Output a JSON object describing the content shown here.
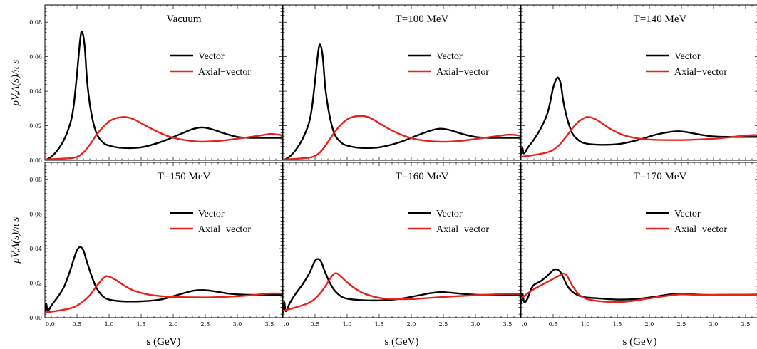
{
  "colors": {
    "vector": "#000000",
    "axial": "#e8211b",
    "frame": "#000000"
  },
  "chart_data": [
    {
      "type": "line",
      "title": "Vacuum",
      "xlabel": "s (GeV)",
      "ylabel": "ρV,A(s)/π s",
      "xlim": [
        0,
        3.7
      ],
      "ylim": [
        0,
        0.09
      ],
      "xticks": [
        "0.0",
        "0.5",
        "1.0",
        "1.5",
        "2.0",
        "2.5",
        "3.0",
        "3.5"
      ],
      "yticks": [
        "0.00",
        "0.02",
        "0.04",
        "0.06",
        "0.08"
      ],
      "legend_position": "right",
      "series": [
        {
          "name": "Vector",
          "x": [
            0,
            0.1,
            0.2,
            0.3,
            0.4,
            0.45,
            0.5,
            0.55,
            0.58,
            0.62,
            0.66,
            0.72,
            0.8,
            0.9,
            1.0,
            1.2,
            1.5,
            1.8,
            2.1,
            2.3,
            2.45,
            2.6,
            2.8,
            3.0,
            3.2,
            3.5,
            3.7
          ],
          "y": [
            0.0,
            0.002,
            0.006,
            0.012,
            0.022,
            0.032,
            0.05,
            0.07,
            0.0745,
            0.066,
            0.045,
            0.028,
            0.016,
            0.0105,
            0.0085,
            0.0072,
            0.0075,
            0.0105,
            0.015,
            0.018,
            0.019,
            0.018,
            0.0155,
            0.0135,
            0.013,
            0.013,
            0.013
          ]
        },
        {
          "name": "Axial−vector",
          "x": [
            0,
            0.2,
            0.4,
            0.5,
            0.6,
            0.7,
            0.8,
            0.9,
            1.0,
            1.1,
            1.2,
            1.3,
            1.4,
            1.5,
            1.7,
            1.9,
            2.1,
            2.4,
            2.7,
            3.0,
            3.3,
            3.5,
            3.6,
            3.7
          ],
          "y": [
            0.0005,
            0.0008,
            0.0012,
            0.002,
            0.0045,
            0.009,
            0.0145,
            0.019,
            0.0225,
            0.0243,
            0.025,
            0.0248,
            0.0235,
            0.0215,
            0.0175,
            0.0142,
            0.0122,
            0.0108,
            0.0112,
            0.0125,
            0.014,
            0.0152,
            0.015,
            0.0145
          ]
        }
      ]
    },
    {
      "type": "line",
      "title": "T=100 MeV",
      "xlabel": "",
      "ylabel": "",
      "xlim": [
        0,
        3.7
      ],
      "ylim": [
        0,
        0.09
      ],
      "xticks": [
        ".0",
        "0.5",
        "1.0",
        "1.5",
        "2.0",
        "2.5",
        "3.0",
        "3.5"
      ],
      "yticks": [],
      "legend_position": "right",
      "series": [
        {
          "name": "Vector",
          "x": [
            0,
            0.1,
            0.2,
            0.3,
            0.4,
            0.45,
            0.5,
            0.55,
            0.58,
            0.62,
            0.66,
            0.72,
            0.8,
            0.9,
            1.0,
            1.2,
            1.5,
            1.8,
            2.1,
            2.3,
            2.45,
            2.6,
            2.8,
            3.0,
            3.2,
            3.5,
            3.7
          ],
          "y": [
            0.0,
            0.002,
            0.006,
            0.012,
            0.021,
            0.03,
            0.046,
            0.063,
            0.067,
            0.06,
            0.042,
            0.027,
            0.0155,
            0.0105,
            0.0085,
            0.0072,
            0.0075,
            0.0102,
            0.0145,
            0.0172,
            0.0183,
            0.0175,
            0.0152,
            0.0135,
            0.013,
            0.013,
            0.013
          ]
        },
        {
          "name": "Axial−vector",
          "x": [
            0,
            0.2,
            0.4,
            0.5,
            0.6,
            0.7,
            0.8,
            0.9,
            1.0,
            1.1,
            1.2,
            1.3,
            1.4,
            1.5,
            1.7,
            1.9,
            2.1,
            2.4,
            2.7,
            3.0,
            3.3,
            3.5,
            3.6,
            3.7
          ],
          "y": [
            0.0005,
            0.0008,
            0.0015,
            0.0025,
            0.0055,
            0.0105,
            0.016,
            0.0205,
            0.0237,
            0.0252,
            0.0257,
            0.0253,
            0.0238,
            0.0215,
            0.0172,
            0.014,
            0.012,
            0.0108,
            0.011,
            0.0123,
            0.0138,
            0.0148,
            0.0147,
            0.0143
          ]
        }
      ]
    },
    {
      "type": "line",
      "title": "T=140 MeV",
      "xlabel": "",
      "ylabel": "",
      "xlim": [
        0,
        3.7
      ],
      "ylim": [
        0,
        0.09
      ],
      "xticks": [
        "0",
        "0.5",
        "1.0",
        "1.5",
        "2.0",
        "2.5",
        "3.0",
        "3.5"
      ],
      "yticks": [],
      "legend_position": "right",
      "series": [
        {
          "name": "Vector",
          "x": [
            0,
            0.02,
            0.04,
            0.07,
            0.1,
            0.2,
            0.3,
            0.4,
            0.45,
            0.5,
            0.55,
            0.58,
            0.62,
            0.66,
            0.72,
            0.8,
            0.9,
            1.0,
            1.2,
            1.5,
            1.8,
            2.1,
            2.3,
            2.45,
            2.6,
            2.8,
            3.0,
            3.3,
            3.7
          ],
          "y": [
            0.003,
            0.007,
            0.004,
            0.005,
            0.007,
            0.012,
            0.018,
            0.026,
            0.033,
            0.042,
            0.047,
            0.0478,
            0.044,
            0.034,
            0.024,
            0.0155,
            0.0115,
            0.0098,
            0.009,
            0.0093,
            0.0115,
            0.0148,
            0.0163,
            0.0168,
            0.0162,
            0.0148,
            0.0138,
            0.0135,
            0.0135
          ]
        },
        {
          "name": "Axial−vector",
          "x": [
            0,
            0.2,
            0.4,
            0.5,
            0.6,
            0.7,
            0.8,
            0.9,
            1.0,
            1.05,
            1.1,
            1.2,
            1.3,
            1.4,
            1.6,
            1.8,
            2.0,
            2.3,
            2.6,
            3.0,
            3.3,
            3.5,
            3.7
          ],
          "y": [
            0.002,
            0.003,
            0.0045,
            0.006,
            0.009,
            0.0135,
            0.0185,
            0.0225,
            0.0248,
            0.025,
            0.0247,
            0.023,
            0.0205,
            0.018,
            0.0145,
            0.0128,
            0.012,
            0.0117,
            0.0118,
            0.0125,
            0.0135,
            0.0143,
            0.0146
          ]
        }
      ]
    },
    {
      "type": "line",
      "title": "T=150 MeV",
      "xlabel": "s (GeV)",
      "ylabel": "ρV,A(s)/π s",
      "xlim": [
        0,
        3.7
      ],
      "ylim": [
        0,
        0.09
      ],
      "xticks": [
        "0.0",
        "0.5",
        "1.0",
        "1.5",
        "2.0",
        "2.5",
        "3.0",
        "3.5"
      ],
      "yticks": [
        "0.00",
        "0.02",
        "0.04",
        "0.06",
        "0.08"
      ],
      "legend_position": "right",
      "series": [
        {
          "name": "Vector",
          "x": [
            0,
            0.02,
            0.04,
            0.07,
            0.1,
            0.2,
            0.3,
            0.4,
            0.45,
            0.5,
            0.55,
            0.6,
            0.65,
            0.72,
            0.8,
            0.9,
            1.0,
            1.2,
            1.5,
            1.8,
            2.1,
            2.3,
            2.45,
            2.6,
            2.8,
            3.0,
            3.3,
            3.7
          ],
          "y": [
            0.003,
            0.008,
            0.004,
            0.005,
            0.007,
            0.012,
            0.018,
            0.028,
            0.034,
            0.039,
            0.041,
            0.039,
            0.033,
            0.025,
            0.0175,
            0.0125,
            0.0105,
            0.0095,
            0.0095,
            0.0105,
            0.0135,
            0.0155,
            0.016,
            0.0155,
            0.0143,
            0.0135,
            0.0132,
            0.0133
          ]
        },
        {
          "name": "Axial−vector",
          "x": [
            0,
            0.2,
            0.4,
            0.5,
            0.6,
            0.7,
            0.8,
            0.9,
            0.95,
            1.0,
            1.1,
            1.2,
            1.3,
            1.4,
            1.6,
            1.8,
            2.0,
            2.3,
            2.6,
            3.0,
            3.3,
            3.5,
            3.7
          ],
          "y": [
            0.003,
            0.004,
            0.0055,
            0.007,
            0.0095,
            0.013,
            0.018,
            0.0225,
            0.024,
            0.0238,
            0.022,
            0.0195,
            0.0172,
            0.0155,
            0.0135,
            0.0125,
            0.012,
            0.0118,
            0.0118,
            0.0124,
            0.0133,
            0.014,
            0.014
          ]
        }
      ]
    },
    {
      "type": "line",
      "title": "T=160 MeV",
      "xlabel": "s (GeV)",
      "ylabel": "",
      "xlim": [
        0,
        3.7
      ],
      "ylim": [
        0,
        0.09
      ],
      "xticks": [
        ".0",
        "0.5",
        "1.0",
        "1.5",
        "2.0",
        "2.5",
        "3.0",
        "3.5"
      ],
      "yticks": [],
      "legend_position": "right",
      "series": [
        {
          "name": "Vector",
          "x": [
            0,
            0.02,
            0.04,
            0.07,
            0.1,
            0.2,
            0.3,
            0.4,
            0.45,
            0.5,
            0.55,
            0.6,
            0.65,
            0.72,
            0.8,
            0.9,
            1.0,
            1.2,
            1.5,
            1.8,
            2.1,
            2.3,
            2.45,
            2.6,
            2.8,
            3.0,
            3.3,
            3.7
          ],
          "y": [
            0.003,
            0.009,
            0.004,
            0.005,
            0.008,
            0.014,
            0.019,
            0.025,
            0.029,
            0.033,
            0.034,
            0.032,
            0.027,
            0.021,
            0.016,
            0.0125,
            0.011,
            0.0102,
            0.01,
            0.0108,
            0.0128,
            0.0142,
            0.0148,
            0.0145,
            0.0138,
            0.0133,
            0.0132,
            0.0133
          ]
        },
        {
          "name": "Axial−vector",
          "x": [
            0,
            0.2,
            0.4,
            0.5,
            0.6,
            0.7,
            0.75,
            0.8,
            0.85,
            0.9,
            1.0,
            1.1,
            1.2,
            1.3,
            1.5,
            1.7,
            2.0,
            2.3,
            2.6,
            3.0,
            3.3,
            3.5,
            3.7
          ],
          "y": [
            0.004,
            0.006,
            0.0085,
            0.011,
            0.015,
            0.0205,
            0.0235,
            0.0255,
            0.0255,
            0.024,
            0.0205,
            0.0175,
            0.0152,
            0.0135,
            0.0115,
            0.0108,
            0.0108,
            0.0115,
            0.0122,
            0.013,
            0.0135,
            0.0138,
            0.0138
          ]
        }
      ]
    },
    {
      "type": "line",
      "title": "T=170 MeV",
      "xlabel": "s (GeV)",
      "ylabel": "",
      "xlim": [
        0,
        3.7
      ],
      "ylim": [
        0,
        0.09
      ],
      "xticks": [
        ".0",
        "0.5",
        "1.0",
        "1.5",
        "2.0",
        "2.5",
        "3.0",
        "3.5"
      ],
      "yticks": [],
      "legend_position": "right",
      "series": [
        {
          "name": "Vector",
          "x": [
            0,
            0.02,
            0.05,
            0.1,
            0.15,
            0.2,
            0.3,
            0.4,
            0.5,
            0.55,
            0.6,
            0.65,
            0.72,
            0.8,
            0.9,
            1.0,
            1.2,
            1.5,
            1.8,
            2.1,
            2.3,
            2.45,
            2.6,
            2.8,
            3.0,
            3.3,
            3.7
          ],
          "y": [
            0.008,
            0.014,
            0.009,
            0.011,
            0.016,
            0.019,
            0.021,
            0.024,
            0.0275,
            0.028,
            0.027,
            0.024,
            0.0185,
            0.015,
            0.0128,
            0.0118,
            0.0112,
            0.0105,
            0.0108,
            0.0122,
            0.0134,
            0.0138,
            0.0137,
            0.0133,
            0.0132,
            0.0133,
            0.0134
          ]
        },
        {
          "name": "Axial−vector",
          "x": [
            0,
            0.1,
            0.2,
            0.3,
            0.4,
            0.5,
            0.6,
            0.65,
            0.7,
            0.75,
            0.8,
            0.9,
            1.0,
            1.1,
            1.3,
            1.5,
            1.7,
            2.0,
            2.3,
            2.5,
            2.8,
            3.2,
            3.7
          ],
          "y": [
            0.011,
            0.014,
            0.0165,
            0.0185,
            0.0205,
            0.0225,
            0.0245,
            0.0255,
            0.025,
            0.022,
            0.0185,
            0.0135,
            0.0112,
            0.0102,
            0.0093,
            0.009,
            0.0095,
            0.0112,
            0.0128,
            0.0135,
            0.0132,
            0.0132,
            0.0134
          ]
        }
      ]
    }
  ]
}
